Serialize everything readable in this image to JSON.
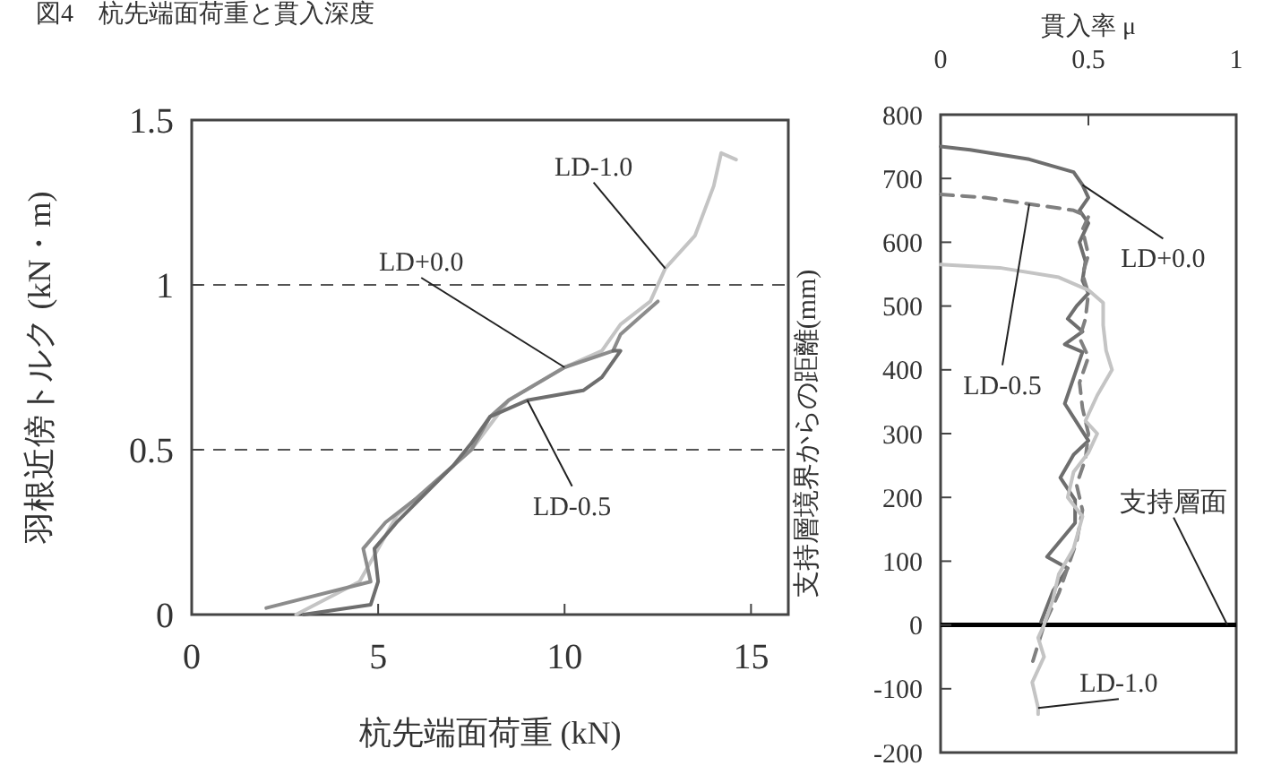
{
  "chart_data": [
    {
      "type": "line",
      "title": "図4　杭先端面荷重と貫入深度",
      "xlabel": "杭先端面荷重 (kN)",
      "ylabel": "羽根近傍トルク (kN・m)",
      "xlim": [
        0,
        16
      ],
      "ylim": [
        0,
        1.5
      ],
      "xticks": [
        0,
        5,
        10,
        15
      ],
      "yticks": [
        0,
        0.5,
        1,
        1.5
      ],
      "series": [
        {
          "color": "#c4c4c4",
          "x": [
            2.8,
            4.5,
            5.0,
            5.5,
            6.5,
            7.5,
            8.5,
            10.0,
            11.0,
            11.5,
            12.3,
            12.7,
            13.5,
            14.0,
            14.2,
            14.6
          ],
          "values": [
            0,
            0.1,
            0.2,
            0.3,
            0.4,
            0.5,
            0.65,
            0.75,
            0.8,
            0.88,
            0.95,
            1.05,
            1.15,
            1.3,
            1.4,
            1.38
          ]
        },
        {
          "color": "#8c8c8c",
          "x": [
            2.0,
            4.8,
            4.6,
            5.2,
            6.0,
            6.5,
            7.0,
            7.5,
            8.0,
            8.5,
            10.0,
            11.3,
            11.5,
            12.0,
            12.5
          ],
          "values": [
            0.02,
            0.1,
            0.2,
            0.28,
            0.35,
            0.4,
            0.45,
            0.5,
            0.6,
            0.65,
            0.75,
            0.8,
            0.85,
            0.9,
            0.95
          ]
        },
        {
          "color": "#6e6e6e",
          "x": [
            3.0,
            4.8,
            5.0,
            4.9,
            5.5,
            7.0,
            7.5,
            8.0,
            9.0,
            10.5,
            11.0,
            11.5,
            11.3
          ],
          "values": [
            0,
            0.03,
            0.1,
            0.2,
            0.28,
            0.45,
            0.52,
            0.6,
            0.65,
            0.68,
            0.72,
            0.8,
            0.8
          ]
        }
      ],
      "annotations": [
        {
          "text": "LD-1.0",
          "x": 12.7,
          "y": 1.05
        },
        {
          "text": "LD+0.0",
          "x": 10.0,
          "y": 0.75
        },
        {
          "text": "LD-0.5",
          "x": 9.0,
          "y": 0.65
        }
      ],
      "ref_lines": [
        {
          "axis": "y",
          "value": 0.5,
          "line_style": "dashed"
        },
        {
          "axis": "y",
          "value": 1,
          "line_style": "dashed"
        }
      ]
    },
    {
      "type": "line",
      "xlabel": "貫入率 μ",
      "ylabel": "支持層境界からの距離(mm)",
      "xlim": [
        0,
        1
      ],
      "ylim": [
        -200,
        800
      ],
      "xticks": [
        0,
        0.5,
        1
      ],
      "yticks": [
        -200,
        -100,
        0,
        100,
        200,
        300,
        400,
        500,
        600,
        700,
        800
      ],
      "series": [
        {
          "color": "#6e6e6e",
          "x": [
            0,
            0.1,
            0.3,
            0.45,
            0.48,
            0.5,
            0.47,
            0.5,
            0.47,
            0.49,
            0.48,
            0.5,
            0.46,
            0.43,
            0.48,
            0.42,
            0.48,
            0.42,
            0.5,
            0.45,
            0.405,
            0.455,
            0.455,
            0.36,
            0.43,
            0.38,
            0.34
          ],
          "values": [
            750,
            745,
            730,
            710,
            690,
            670,
            650,
            630,
            600,
            570,
            540,
            520,
            500,
            480,
            460,
            440,
            428,
            347,
            289,
            267,
            231,
            196,
            160,
            107,
            89,
            53,
            5
          ]
        },
        {
          "color": "#808080",
          "line_style": "dashed",
          "x": [
            0,
            0.15,
            0.3,
            0.45,
            0.5,
            0.48,
            0.5,
            0.48,
            0.5,
            0.49,
            0.47,
            0.5,
            0.47,
            0.48,
            0.5,
            0.49,
            0.46,
            0.48,
            0.46,
            0.43,
            0.4,
            0.35,
            0.33,
            0.31
          ],
          "values": [
            675,
            670,
            660,
            650,
            640,
            620,
            580,
            550,
            520,
            480,
            450,
            420,
            380,
            340,
            300,
            260,
            220,
            180,
            130,
            90,
            50,
            0,
            -30,
            -60
          ]
        },
        {
          "color": "#c4c4c4",
          "x": [
            0,
            0.2,
            0.4,
            0.5,
            0.55,
            0.55,
            0.56,
            0.58,
            0.53,
            0.49,
            0.53,
            0.5,
            0.45,
            0.43,
            0.48,
            0.45,
            0.4,
            0.38,
            0.35,
            0.33,
            0.35,
            0.31,
            0.33,
            0.33
          ],
          "values": [
            565,
            560,
            545,
            525,
            505,
            470,
            430,
            400,
            360,
            320,
            300,
            270,
            240,
            200,
            170,
            120,
            80,
            40,
            0,
            -20,
            -50,
            -90,
            -130,
            -140
          ]
        }
      ],
      "annotations": [
        {
          "text": "LD+0.0",
          "x": 0.48,
          "y": 690
        },
        {
          "text": "LD-0.5",
          "x": 0.3,
          "y": 660
        },
        {
          "text": "LD-1.0",
          "x": 0.33,
          "y": -130
        },
        {
          "text": "支持層面",
          "x": 0.97,
          "y": 0
        }
      ],
      "ref_lines": [
        {
          "axis": "y",
          "value": 0,
          "color": "#000000",
          "line_style": "solid"
        }
      ]
    }
  ]
}
